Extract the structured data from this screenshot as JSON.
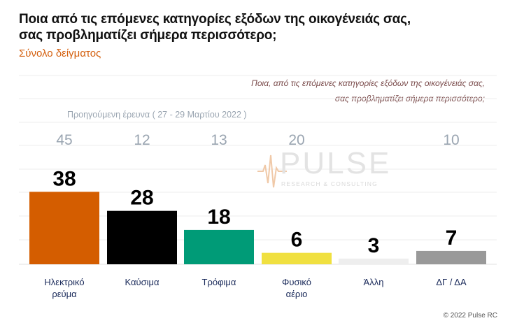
{
  "title_line1": "Ποια από τις επόμενες κατηγορίες εξόδων της οικογένειάς σας,",
  "title_line2": "σας προβληματίζει σήμερα περισσότερο;",
  "subtitle": "Σύνολο δείγματος",
  "question_line1": "Ποια, από τις επόμενες κατηγορίες εξόδων της οικογένειάς σας,",
  "question_line2": "σας προβληματίζει σήμερα περισσότερο;",
  "previous_survey_label": "Προηγούμενη έρευνα  ( 27 - 29 Μαρτίου  2022 )",
  "watermark": {
    "brand": "PULSE",
    "tagline": "RESEARCH & CONSULTING"
  },
  "footer": "© 2022 Pulse RC",
  "chart_data": {
    "type": "bar",
    "categories": [
      [
        "Ηλεκτρικό",
        "ρεύμα"
      ],
      [
        "Καύσιμα"
      ],
      [
        "Τρόφιμα"
      ],
      [
        "Φυσικό",
        "αέριο"
      ],
      [
        "Άλλη"
      ],
      [
        "ΔΓ / ΔΑ"
      ]
    ],
    "values": [
      38,
      28,
      18,
      6,
      3,
      7
    ],
    "previous_values": [
      45,
      12,
      13,
      20,
      null,
      10
    ],
    "colors": [
      "#d45d00",
      "#000000",
      "#009b77",
      "#f0e040",
      "#eeeeee",
      "#999999"
    ],
    "ylim": [
      0,
      60
    ],
    "grid": true
  }
}
